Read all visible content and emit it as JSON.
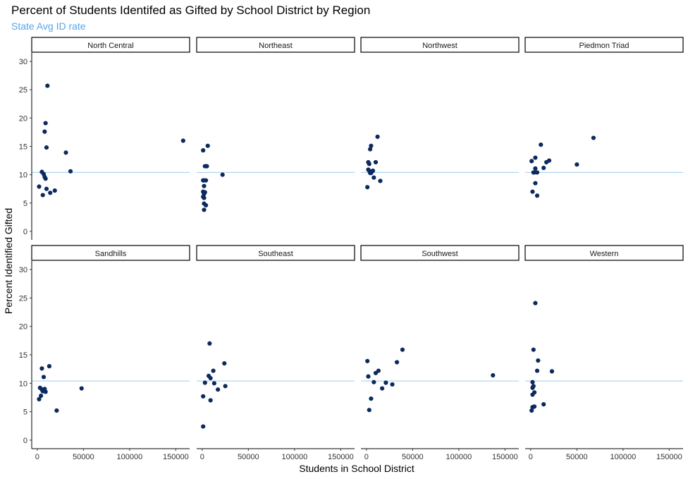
{
  "chart_data": {
    "type": "scatter",
    "title": "Percent of Students Identifed as Gifted by School District by Region",
    "subtitle": "State Avg ID rate",
    "xlabel": "Students in School District",
    "ylabel": "Percent Identified Gifted",
    "xlim": [
      -6000,
      165000
    ],
    "ylim": [
      -1.5,
      31.5
    ],
    "x_ticks": [
      0,
      50000,
      100000,
      150000
    ],
    "y_ticks": [
      0,
      5,
      10,
      15,
      20,
      25,
      30
    ],
    "reference_line": 10.4,
    "grid": false,
    "layout": "facet 2 rows x 4 columns, shared axes",
    "colors": {
      "points": "#0c2a5e",
      "reference_line": "#a9d0f0",
      "subtitle": "#56a4e8",
      "axis": "#000000"
    },
    "panels": [
      {
        "name": "North Central",
        "points": [
          [
            2000,
            7.9
          ],
          [
            5000,
            10.5
          ],
          [
            7000,
            10.1
          ],
          [
            8000,
            9.6
          ],
          [
            9000,
            19.1
          ],
          [
            11000,
            25.7
          ],
          [
            8000,
            17.6
          ],
          [
            10000,
            14.8
          ],
          [
            9000,
            9.3
          ],
          [
            6000,
            6.4
          ],
          [
            10000,
            7.5
          ],
          [
            14000,
            6.8
          ],
          [
            19000,
            7.2
          ],
          [
            31000,
            13.9
          ],
          [
            36000,
            10.6
          ],
          [
            158000,
            16.0
          ]
        ]
      },
      {
        "name": "Northeast",
        "points": [
          [
            1000,
            14.3
          ],
          [
            3000,
            11.5
          ],
          [
            5000,
            11.5
          ],
          [
            6000,
            15.1
          ],
          [
            1000,
            9.0
          ],
          [
            2000,
            9.0
          ],
          [
            4000,
            9.0
          ],
          [
            2000,
            8.0
          ],
          [
            1000,
            7.0
          ],
          [
            3000,
            6.9
          ],
          [
            2000,
            6.6
          ],
          [
            1000,
            6.1
          ],
          [
            2000,
            5.9
          ],
          [
            2000,
            4.9
          ],
          [
            4000,
            4.6
          ],
          [
            2000,
            3.8
          ],
          [
            22000,
            10.0
          ]
        ]
      },
      {
        "name": "Northwest",
        "points": [
          [
            1000,
            7.8
          ],
          [
            2000,
            12.2
          ],
          [
            3000,
            11.9
          ],
          [
            4000,
            14.5
          ],
          [
            5000,
            15.1
          ],
          [
            2000,
            10.9
          ],
          [
            3000,
            10.7
          ],
          [
            4000,
            10.3
          ],
          [
            5000,
            10.3
          ],
          [
            7000,
            10.7
          ],
          [
            8000,
            9.5
          ],
          [
            10000,
            12.2
          ],
          [
            12000,
            16.7
          ],
          [
            15000,
            8.9
          ]
        ]
      },
      {
        "name": "Piedmon Triad",
        "points": [
          [
            1000,
            12.4
          ],
          [
            2000,
            7.0
          ],
          [
            3000,
            10.4
          ],
          [
            4000,
            10.4
          ],
          [
            5000,
            8.5
          ],
          [
            5000,
            11.1
          ],
          [
            5000,
            13.0
          ],
          [
            7000,
            6.3
          ],
          [
            7000,
            10.4
          ],
          [
            11000,
            15.3
          ],
          [
            14000,
            11.2
          ],
          [
            17000,
            12.2
          ],
          [
            20000,
            12.5
          ],
          [
            50000,
            11.8
          ],
          [
            68000,
            16.5
          ]
        ]
      },
      {
        "name": "Sandhills",
        "points": [
          [
            2000,
            7.2
          ],
          [
            3000,
            9.2
          ],
          [
            4000,
            7.8
          ],
          [
            5000,
            12.6
          ],
          [
            5000,
            8.9
          ],
          [
            6000,
            8.6
          ],
          [
            7000,
            11.1
          ],
          [
            8000,
            9.0
          ],
          [
            9000,
            8.5
          ],
          [
            13000,
            13.0
          ],
          [
            21000,
            5.2
          ],
          [
            48000,
            9.1
          ]
        ]
      },
      {
        "name": "Southeast",
        "points": [
          [
            1000,
            2.4
          ],
          [
            1000,
            7.7
          ],
          [
            3000,
            10.1
          ],
          [
            7000,
            11.3
          ],
          [
            8000,
            17.0
          ],
          [
            9000,
            10.9
          ],
          [
            9000,
            7.0
          ],
          [
            12000,
            12.2
          ],
          [
            13000,
            10.0
          ],
          [
            17000,
            8.9
          ],
          [
            24000,
            13.5
          ],
          [
            25000,
            9.5
          ]
        ]
      },
      {
        "name": "Southwest",
        "points": [
          [
            1000,
            13.9
          ],
          [
            2000,
            11.2
          ],
          [
            3000,
            5.3
          ],
          [
            5000,
            7.3
          ],
          [
            8000,
            10.2
          ],
          [
            10000,
            11.8
          ],
          [
            13000,
            12.2
          ],
          [
            17000,
            9.1
          ],
          [
            21000,
            10.1
          ],
          [
            28000,
            9.8
          ],
          [
            33000,
            13.7
          ],
          [
            39000,
            15.9
          ],
          [
            137000,
            11.4
          ]
        ]
      },
      {
        "name": "Western",
        "points": [
          [
            1000,
            5.2
          ],
          [
            2000,
            5.8
          ],
          [
            2000,
            8.0
          ],
          [
            2000,
            9.2
          ],
          [
            2000,
            10.2
          ],
          [
            3000,
            15.9
          ],
          [
            3000,
            9.5
          ],
          [
            4000,
            8.4
          ],
          [
            4000,
            5.9
          ],
          [
            5000,
            24.1
          ],
          [
            7000,
            12.2
          ],
          [
            8000,
            14.0
          ],
          [
            14000,
            6.3
          ],
          [
            23000,
            12.1
          ]
        ]
      }
    ]
  }
}
